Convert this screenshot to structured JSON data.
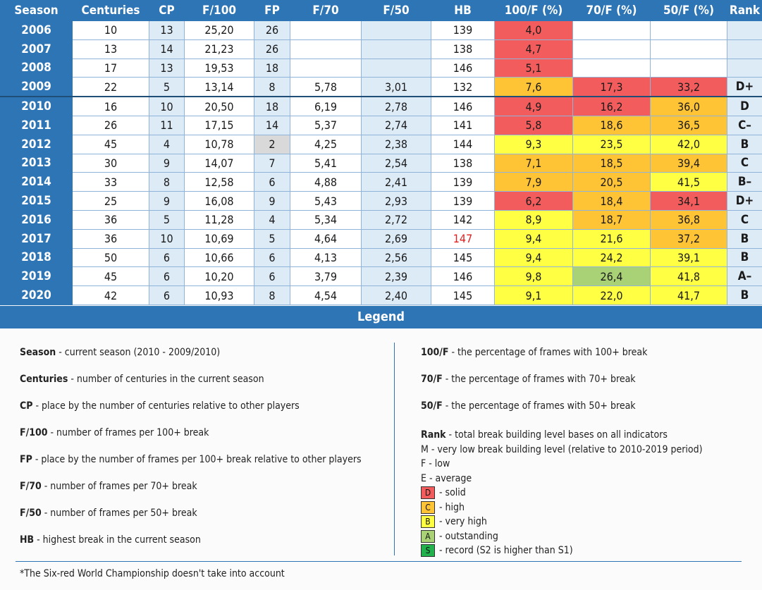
{
  "table": {
    "headers": [
      "Season",
      "Centuries",
      "CP",
      "F/100",
      "FP",
      "F/70",
      "F/50",
      "HB",
      "100/F (%)",
      "70/F (%)",
      "50/F (%)",
      "Rank"
    ],
    "rows": [
      {
        "season": "2006",
        "centuries": "10",
        "cp": "13",
        "f100": "25,20",
        "fp": "26",
        "f70": "",
        "f50": "",
        "hb": "139",
        "p100": "4,0",
        "p70": "",
        "p50": "",
        "rank": "",
        "c100": "red",
        "c70": "",
        "c50": "",
        "fpc": "",
        "hbc": ""
      },
      {
        "season": "2007",
        "centuries": "13",
        "cp": "14",
        "f100": "21,23",
        "fp": "26",
        "f70": "",
        "f50": "",
        "hb": "138",
        "p100": "4,7",
        "p70": "",
        "p50": "",
        "rank": "",
        "c100": "red",
        "c70": "",
        "c50": "",
        "fpc": "",
        "hbc": ""
      },
      {
        "season": "2008",
        "centuries": "17",
        "cp": "13",
        "f100": "19,53",
        "fp": "18",
        "f70": "",
        "f50": "",
        "hb": "146",
        "p100": "5,1",
        "p70": "",
        "p50": "",
        "rank": "",
        "c100": "red",
        "c70": "",
        "c50": "",
        "fpc": "",
        "hbc": ""
      },
      {
        "season": "2009",
        "centuries": "22",
        "cp": "5",
        "f100": "13,14",
        "fp": "8",
        "f70": "5,78",
        "f50": "3,01",
        "hb": "132",
        "p100": "7,6",
        "p70": "17,3",
        "p50": "33,2",
        "rank": "D+",
        "c100": "orange",
        "c70": "red",
        "c50": "red",
        "fpc": "",
        "hbc": ""
      },
      {
        "season": "2010",
        "centuries": "16",
        "cp": "10",
        "f100": "20,50",
        "fp": "18",
        "f70": "6,19",
        "f50": "2,78",
        "hb": "146",
        "p100": "4,9",
        "p70": "16,2",
        "p50": "36,0",
        "rank": "D",
        "c100": "red",
        "c70": "red",
        "c50": "orange",
        "fpc": "",
        "hbc": ""
      },
      {
        "season": "2011",
        "centuries": "26",
        "cp": "11",
        "f100": "17,15",
        "fp": "14",
        "f70": "5,37",
        "f50": "2,74",
        "hb": "141",
        "p100": "5,8",
        "p70": "18,6",
        "p50": "36,5",
        "rank": "C–",
        "c100": "red",
        "c70": "orange",
        "c50": "orange",
        "fpc": "",
        "hbc": ""
      },
      {
        "season": "2012",
        "centuries": "45",
        "cp": "4",
        "f100": "10,78",
        "fp": "2",
        "f70": "4,25",
        "f50": "2,38",
        "hb": "144",
        "p100": "9,3",
        "p70": "23,5",
        "p50": "42,0",
        "rank": "B",
        "c100": "yellow",
        "c70": "yellow",
        "c50": "yellow",
        "fpc": "grey",
        "hbc": ""
      },
      {
        "season": "2013",
        "centuries": "30",
        "cp": "9",
        "f100": "14,07",
        "fp": "7",
        "f70": "5,41",
        "f50": "2,54",
        "hb": "138",
        "p100": "7,1",
        "p70": "18,5",
        "p50": "39,4",
        "rank": "C",
        "c100": "orange",
        "c70": "orange",
        "c50": "orange",
        "fpc": "",
        "hbc": ""
      },
      {
        "season": "2014",
        "centuries": "33",
        "cp": "8",
        "f100": "12,58",
        "fp": "6",
        "f70": "4,88",
        "f50": "2,41",
        "hb": "139",
        "p100": "7,9",
        "p70": "20,5",
        "p50": "41,5",
        "rank": "B–",
        "c100": "orange",
        "c70": "orange",
        "c50": "yellow",
        "fpc": "",
        "hbc": ""
      },
      {
        "season": "2015",
        "centuries": "25",
        "cp": "9",
        "f100": "16,08",
        "fp": "9",
        "f70": "5,43",
        "f50": "2,93",
        "hb": "139",
        "p100": "6,2",
        "p70": "18,4",
        "p50": "34,1",
        "rank": "D+",
        "c100": "red",
        "c70": "orange",
        "c50": "red",
        "fpc": "",
        "hbc": ""
      },
      {
        "season": "2016",
        "centuries": "36",
        "cp": "5",
        "f100": "11,28",
        "fp": "4",
        "f70": "5,34",
        "f50": "2,72",
        "hb": "142",
        "p100": "8,9",
        "p70": "18,7",
        "p50": "36,8",
        "rank": "C",
        "c100": "yellow",
        "c70": "orange",
        "c50": "orange",
        "fpc": "",
        "hbc": ""
      },
      {
        "season": "2017",
        "centuries": "36",
        "cp": "10",
        "f100": "10,69",
        "fp": "5",
        "f70": "4,64",
        "f50": "2,69",
        "hb": "147",
        "p100": "9,4",
        "p70": "21,6",
        "p50": "37,2",
        "rank": "B",
        "c100": "yellow",
        "c70": "yellow",
        "c50": "orange",
        "fpc": "",
        "hbc": "red"
      },
      {
        "season": "2018",
        "centuries": "50",
        "cp": "6",
        "f100": "10,66",
        "fp": "6",
        "f70": "4,13",
        "f50": "2,56",
        "hb": "145",
        "p100": "9,4",
        "p70": "24,2",
        "p50": "39,1",
        "rank": "B",
        "c100": "yellow",
        "c70": "yellow",
        "c50": "yellow",
        "fpc": "",
        "hbc": ""
      },
      {
        "season": "2019",
        "centuries": "45",
        "cp": "6",
        "f100": "10,20",
        "fp": "6",
        "f70": "3,79",
        "f50": "2,39",
        "hb": "146",
        "p100": "9,8",
        "p70": "26,4",
        "p50": "41,8",
        "rank": "A–",
        "c100": "yellow",
        "c70": "green",
        "c50": "yellow",
        "fpc": "",
        "hbc": ""
      },
      {
        "season": "2020",
        "centuries": "42",
        "cp": "6",
        "f100": "10,93",
        "fp": "8",
        "f70": "4,54",
        "f50": "2,40",
        "hb": "145",
        "p100": "9,1",
        "p70": "22,0",
        "p50": "41,7",
        "rank": "B",
        "c100": "yellow",
        "c70": "yellow",
        "c50": "yellow",
        "fpc": "",
        "hbc": ""
      }
    ]
  },
  "legend": {
    "title": "Legend",
    "left": [
      {
        "term": "Season",
        "desc": " - current season (2010 - 2009/2010)"
      },
      {
        "term": "Centuries",
        "desc": " - number of centuries in the current season"
      },
      {
        "term": "CP",
        "desc": " - place by the number of centuries relative to other players"
      },
      {
        "term": "F/100",
        "desc": " - number of frames per 100+ break"
      },
      {
        "term": "FP",
        "desc": " - place by the number of frames per 100+ break relative to other players"
      },
      {
        "term": "F/70",
        "desc": " - number of frames per 70+ break"
      },
      {
        "term": "F/50",
        "desc": " - number of frames per 50+ break"
      },
      {
        "term": "HB",
        "desc": " - highest break in the current season"
      }
    ],
    "right": [
      {
        "term": "100/F",
        "desc": " - the percentage of frames with 100+ break"
      },
      {
        "term": "70/F",
        "desc": " - the percentage of frames with 70+ break"
      },
      {
        "term": "50/F",
        "desc": " - the percentage of frames with 50+ break"
      }
    ],
    "rank": {
      "term": "Rank",
      "desc": " - total break building level bases on all indicators",
      "levels": [
        "M - very low break building level (relative to 2010-2019 period)",
        "F - low",
        "E - average"
      ],
      "swatches": [
        {
          "letter": "D",
          "desc": "- solid",
          "color": "#f25c5c"
        },
        {
          "letter": "C",
          "desc": "- high",
          "color": "#ffc336"
        },
        {
          "letter": "B",
          "desc": "- very high",
          "color": "#ffff44"
        },
        {
          "letter": "A",
          "desc": "- outstanding",
          "color": "#a9d276"
        },
        {
          "letter": "S",
          "desc": "- record (S2 is higher than S1)",
          "color": "#22b14c"
        }
      ]
    },
    "footnote": "*The Six-red World Championship doesn't take into account"
  }
}
